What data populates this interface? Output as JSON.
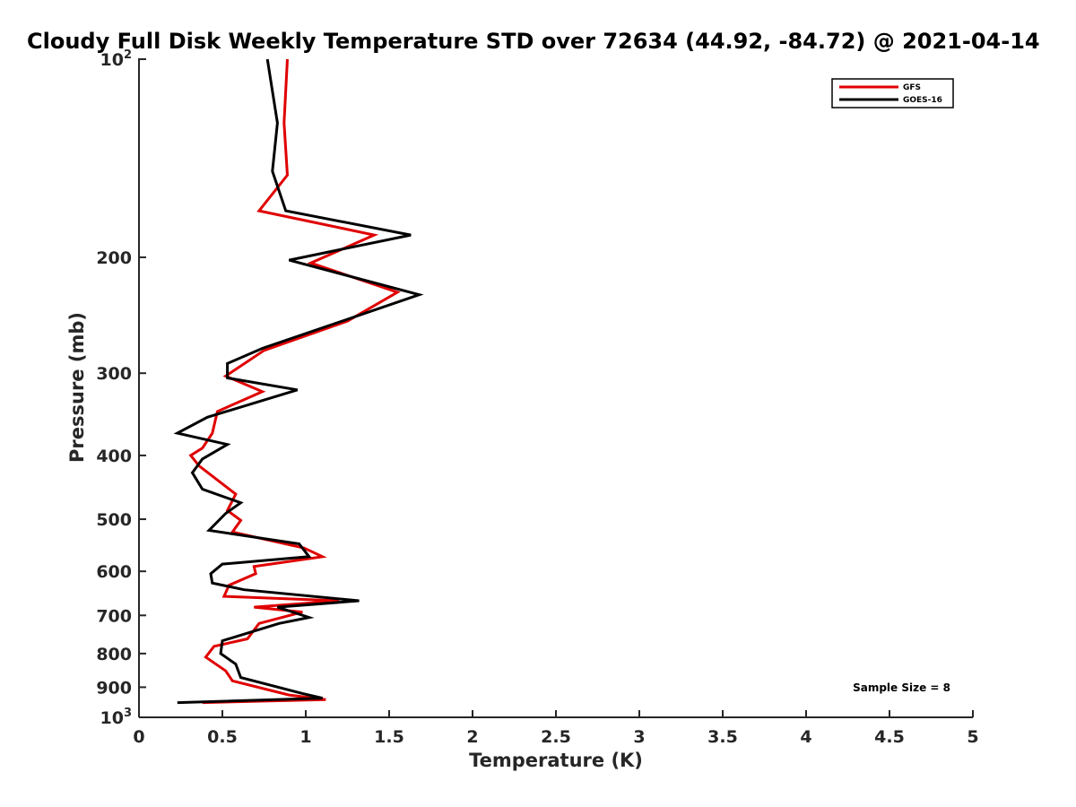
{
  "chart_data": {
    "type": "line",
    "title": "Cloudy Full Disk Weekly Temperature STD over 72634 (44.92, -84.72) @ 2021-04-14",
    "xlabel": "Temperature (K)",
    "ylabel": "Pressure (mb)",
    "xlim": [
      0,
      5
    ],
    "ylim": [
      100,
      1000
    ],
    "y_scale": "log",
    "y_reversed": true,
    "x_ticks": [
      {
        "v": 0,
        "label": "0"
      },
      {
        "v": 0.5,
        "label": "0.5"
      },
      {
        "v": 1,
        "label": "1"
      },
      {
        "v": 1.5,
        "label": "1.5"
      },
      {
        "v": 2,
        "label": "2"
      },
      {
        "v": 2.5,
        "label": "2.5"
      },
      {
        "v": 3,
        "label": "3"
      },
      {
        "v": 3.5,
        "label": "3.5"
      },
      {
        "v": 4,
        "label": "4"
      },
      {
        "v": 4.5,
        "label": "4.5"
      },
      {
        "v": 5,
        "label": "5"
      }
    ],
    "y_ticks": [
      {
        "v": 100,
        "base": "10",
        "exp": "2"
      },
      {
        "v": 200,
        "label": "200"
      },
      {
        "v": 300,
        "label": "300"
      },
      {
        "v": 400,
        "label": "400"
      },
      {
        "v": 500,
        "label": "500"
      },
      {
        "v": 600,
        "label": "600"
      },
      {
        "v": 700,
        "label": "700"
      },
      {
        "v": 800,
        "label": "800"
      },
      {
        "v": 900,
        "label": "900"
      },
      {
        "v": 1000,
        "base": "10",
        "exp": "3"
      }
    ],
    "grid": false,
    "legend": {
      "placement": "top-right"
    },
    "annotation": "Sample Size = 8",
    "series": [
      {
        "name": "GFS",
        "color": "#e00000",
        "points": [
          [
            0.89,
            100
          ],
          [
            0.87,
            125
          ],
          [
            0.89,
            150
          ],
          [
            0.72,
            170
          ],
          [
            1.41,
            185
          ],
          [
            1.03,
            204
          ],
          [
            1.55,
            226
          ],
          [
            1.25,
            250
          ],
          [
            0.75,
            277
          ],
          [
            0.52,
            303
          ],
          [
            0.74,
            320
          ],
          [
            0.47,
            343
          ],
          [
            0.44,
            370
          ],
          [
            0.38,
            390
          ],
          [
            0.31,
            400
          ],
          [
            0.36,
            415
          ],
          [
            0.58,
            458
          ],
          [
            0.53,
            485
          ],
          [
            0.61,
            502
          ],
          [
            0.56,
            523
          ],
          [
            0.99,
            553
          ],
          [
            1.1,
            570
          ],
          [
            0.69,
            590
          ],
          [
            0.7,
            605
          ],
          [
            0.54,
            630
          ],
          [
            0.51,
            655
          ],
          [
            1.2,
            665
          ],
          [
            0.69,
            680
          ],
          [
            0.98,
            692
          ],
          [
            0.72,
            720
          ],
          [
            0.65,
            760
          ],
          [
            0.45,
            780
          ],
          [
            0.4,
            810
          ],
          [
            0.52,
            850
          ],
          [
            0.56,
            880
          ],
          [
            0.9,
            925
          ],
          [
            1.12,
            940
          ],
          [
            0.38,
            950
          ]
        ]
      },
      {
        "name": "GOES-16",
        "color": "#000000",
        "points": [
          [
            0.77,
            100
          ],
          [
            0.83,
            125
          ],
          [
            0.8,
            148
          ],
          [
            0.88,
            170
          ],
          [
            1.63,
            185
          ],
          [
            0.9,
            202
          ],
          [
            1.68,
            228
          ],
          [
            0.74,
            275
          ],
          [
            0.53,
            290
          ],
          [
            0.53,
            305
          ],
          [
            0.95,
            318
          ],
          [
            0.41,
            350
          ],
          [
            0.23,
            370
          ],
          [
            0.53,
            385
          ],
          [
            0.38,
            405
          ],
          [
            0.32,
            425
          ],
          [
            0.38,
            450
          ],
          [
            0.61,
            472
          ],
          [
            0.52,
            490
          ],
          [
            0.42,
            520
          ],
          [
            0.96,
            545
          ],
          [
            1.02,
            570
          ],
          [
            0.5,
            585
          ],
          [
            0.43,
            605
          ],
          [
            0.44,
            625
          ],
          [
            0.63,
            640
          ],
          [
            1.32,
            665
          ],
          [
            0.83,
            680
          ],
          [
            1.02,
            705
          ],
          [
            0.84,
            720
          ],
          [
            0.5,
            765
          ],
          [
            0.49,
            800
          ],
          [
            0.58,
            830
          ],
          [
            0.61,
            870
          ],
          [
            0.98,
            920
          ],
          [
            1.1,
            935
          ],
          [
            0.23,
            950
          ]
        ]
      }
    ]
  }
}
